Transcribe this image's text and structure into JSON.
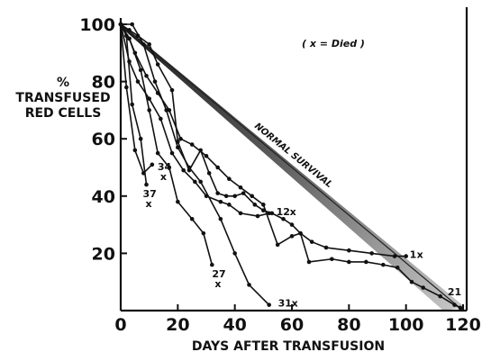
{
  "chart_data": {
    "type": "line",
    "xlabel": "DAYS AFTER TRANSFUSION",
    "ylabel_lines": [
      "%",
      "TRANSFUSED",
      "RED CELLS"
    ],
    "legend_note": "( x = Died )",
    "band_label": "NORMAL SURVIVAL",
    "xlim": [
      0,
      120
    ],
    "ylim": [
      0,
      100
    ],
    "x_ticks": [
      0,
      20,
      40,
      60,
      80,
      100,
      120
    ],
    "y_ticks": [
      20,
      40,
      60,
      80,
      100
    ],
    "grid": false,
    "normal_survival": {
      "start": [
        0,
        100
      ],
      "end": [
        120,
        0
      ]
    },
    "series": [
      {
        "name": "37",
        "died": true,
        "points": [
          [
            0,
            100
          ],
          [
            2,
            96
          ],
          [
            4,
            72
          ],
          [
            7,
            60
          ],
          [
            9,
            44
          ]
        ]
      },
      {
        "name": "34",
        "died": true,
        "points": [
          [
            0,
            100
          ],
          [
            2,
            78
          ],
          [
            5,
            56
          ],
          [
            8,
            48
          ],
          [
            11,
            51
          ]
        ]
      },
      {
        "name": "27",
        "died": true,
        "points": [
          [
            0,
            100
          ],
          [
            3,
            95
          ],
          [
            7,
            84
          ],
          [
            10,
            70
          ],
          [
            13,
            55
          ],
          [
            17,
            50
          ],
          [
            20,
            38
          ],
          [
            25,
            32
          ],
          [
            29,
            27
          ],
          [
            32,
            16
          ]
        ]
      },
      {
        "name": "31",
        "died": true,
        "points": [
          [
            0,
            100
          ],
          [
            4,
            100
          ],
          [
            8,
            93
          ],
          [
            12,
            80
          ],
          [
            16,
            70
          ],
          [
            20,
            57
          ],
          [
            24,
            50
          ],
          [
            28,
            45
          ],
          [
            35,
            32
          ],
          [
            40,
            20
          ],
          [
            45,
            9
          ],
          [
            52,
            2
          ]
        ]
      },
      {
        "name": "12",
        "died": true,
        "points": [
          [
            0,
            100
          ],
          [
            3,
            87
          ],
          [
            6,
            80
          ],
          [
            10,
            74
          ],
          [
            14,
            67
          ],
          [
            18,
            55
          ],
          [
            22,
            49
          ],
          [
            26,
            45
          ],
          [
            30,
            40
          ],
          [
            35,
            38
          ],
          [
            38,
            37
          ],
          [
            42,
            34
          ],
          [
            48,
            33
          ],
          [
            52,
            34
          ]
        ]
      },
      {
        "name": "1",
        "died": true,
        "points": [
          [
            0,
            100
          ],
          [
            3,
            98
          ],
          [
            6,
            96
          ],
          [
            10,
            93
          ],
          [
            13,
            86
          ],
          [
            18,
            77
          ],
          [
            20,
            59
          ],
          [
            24,
            49
          ],
          [
            28,
            56
          ],
          [
            31,
            48
          ],
          [
            34,
            41
          ],
          [
            37,
            40
          ],
          [
            40,
            40
          ],
          [
            43,
            41
          ],
          [
            47,
            37
          ],
          [
            50,
            35
          ],
          [
            53,
            34
          ],
          [
            57,
            32
          ],
          [
            60,
            30
          ],
          [
            63,
            27
          ],
          [
            67,
            24
          ],
          [
            72,
            22
          ],
          [
            80,
            21
          ],
          [
            88,
            20
          ],
          [
            96,
            19
          ],
          [
            100,
            19
          ]
        ]
      },
      {
        "name": "21",
        "died": false,
        "points": [
          [
            0,
            100
          ],
          [
            3,
            95
          ],
          [
            5,
            90
          ],
          [
            9,
            82
          ],
          [
            13,
            76
          ],
          [
            17,
            70
          ],
          [
            21,
            60
          ],
          [
            25,
            58
          ],
          [
            30,
            54
          ],
          [
            34,
            50
          ],
          [
            38,
            46
          ],
          [
            42,
            43
          ],
          [
            46,
            40
          ],
          [
            50,
            37
          ],
          [
            55,
            23
          ],
          [
            60,
            26
          ],
          [
            63,
            27
          ],
          [
            66,
            17
          ],
          [
            74,
            18
          ],
          [
            80,
            17
          ],
          [
            86,
            17
          ],
          [
            92,
            16
          ],
          [
            97,
            15
          ],
          [
            102,
            10
          ],
          [
            106,
            8
          ],
          [
            112,
            5
          ],
          [
            117,
            2
          ],
          [
            119,
            1
          ]
        ]
      }
    ]
  }
}
